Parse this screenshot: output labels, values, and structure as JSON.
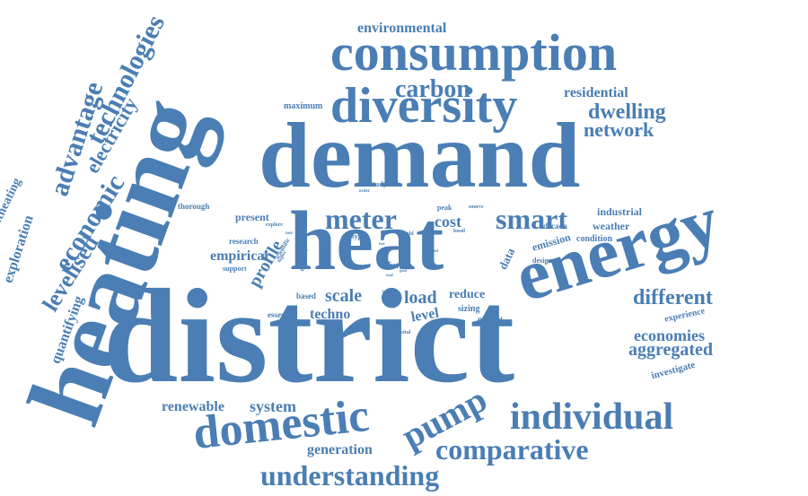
{
  "color": "#4a7eb4",
  "words": {
    "district": "district",
    "heating": "heating",
    "demand": "demand",
    "heat": "heat",
    "energy": "energy",
    "consumption": "consumption",
    "diversity": "diversity",
    "domestic": "domestic",
    "individual": "individual",
    "pump": "pump",
    "comparative": "comparative",
    "understanding": "understanding",
    "smart": "smart",
    "meter": "meter",
    "carbon": "carbon",
    "dwelling": "dwelling",
    "network": "network",
    "residential": "residential",
    "environmental": "environmental",
    "technologies": "technologies",
    "advantage": "advantage",
    "economic": "economic",
    "electricity": "electricity",
    "levelised": "levelised",
    "exploration": "exploration",
    "districtheating": "districtheating",
    "quantifying": "quantifying",
    "different": "different",
    "economies": "economies",
    "aggregated": "aggregated",
    "experience": "experience",
    "investigate": "investigate",
    "profile": "profile",
    "empirical": "empirical",
    "scale": "scale",
    "load": "load",
    "cost": "cost",
    "level": "level",
    "reduce": "reduce",
    "techno": "techno",
    "system": "system",
    "renewable": "renewable",
    "generation": "generation",
    "present": "present",
    "research": "research",
    "support": "support",
    "thorough": "thorough",
    "maximum": "maximum",
    "industrial": "industrial",
    "weather": "weather",
    "condition": "condition",
    "emission": "emission",
    "data": "data",
    "decade": "decade",
    "design": "design",
    "future": "future",
    "sizing": "sizing",
    "market": "market",
    "capital": "capital",
    "based": "based",
    "essential": "essential",
    "study": "study",
    "order": "order",
    "peak": "peak",
    "source": "source",
    "fossil": "fossil",
    "cold": "cold",
    "fuel": "fuel",
    "explore": "explore",
    "field": "field",
    "scientific": "scientific",
    "higher": "higher",
    "electric": "electric",
    "type": "type",
    "better": "better",
    "total": "total",
    "most": "most",
    "good": "good",
    "role": "role",
    "post": "post"
  }
}
